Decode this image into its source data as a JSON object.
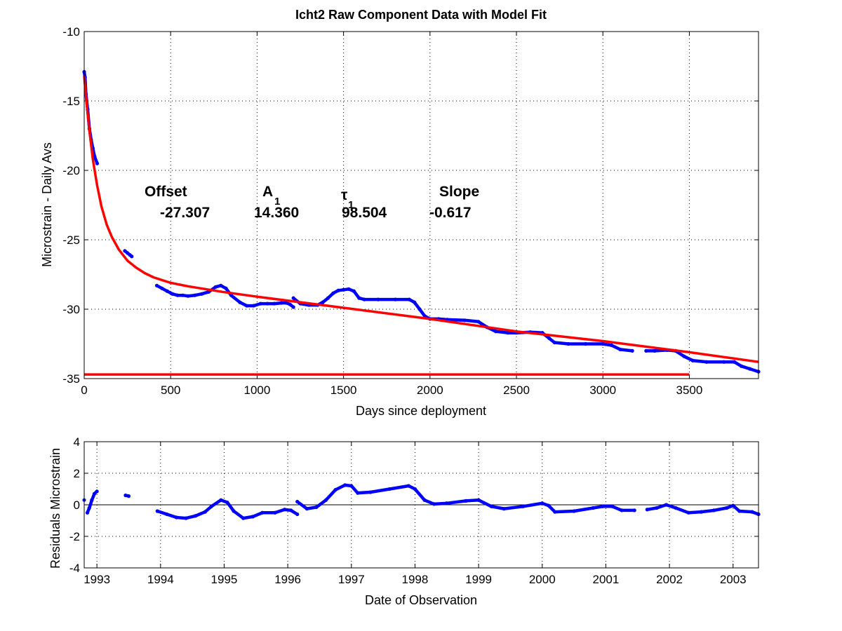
{
  "chart_data": [
    {
      "type": "line",
      "title": "Icht2  Raw Component Data with Model Fit",
      "xlabel": "Days since deployment",
      "ylabel": "Microstrain - Daily Avs",
      "xlim": [
        0,
        3900
      ],
      "ylim": [
        -35,
        -10
      ],
      "xticks": [
        0,
        500,
        1000,
        1500,
        2000,
        2500,
        3000,
        3500
      ],
      "yticks": [
        -10,
        -15,
        -20,
        -25,
        -30,
        -35
      ],
      "grid": true,
      "annotations": {
        "offset_label": "Offset",
        "offset_value": "-27.307",
        "a1_label": "A",
        "a1_sub": "1",
        "a1_value": "14.360",
        "tau1_label": "τ",
        "tau1_sub": "1",
        "tau1_value": "98.504",
        "slope_label": "Slope",
        "slope_value": "-0.617"
      },
      "series": [
        {
          "color": "#0000ff",
          "style": "points",
          "segments": [
            [
              [
                0,
                -12.9
              ],
              [
                5,
                -13.3
              ],
              [
                10,
                -14.5
              ],
              [
                20,
                -15.6
              ],
              [
                30,
                -17.0
              ],
              [
                40,
                -17.8
              ],
              [
                50,
                -18.4
              ],
              [
                60,
                -19.0
              ],
              [
                75,
                -19.5
              ]
            ],
            [
              [
                235,
                -25.8
              ],
              [
                250,
                -25.95
              ],
              [
                265,
                -26.1
              ],
              [
                275,
                -26.2
              ]
            ],
            [
              [
                420,
                -28.3
              ],
              [
                450,
                -28.5
              ],
              [
                480,
                -28.7
              ],
              [
                510,
                -28.9
              ],
              [
                540,
                -29.0
              ],
              [
                570,
                -29.0
              ],
              [
                600,
                -29.05
              ],
              [
                640,
                -29.0
              ],
              [
                680,
                -28.9
              ],
              [
                720,
                -28.75
              ],
              [
                760,
                -28.4
              ],
              [
                790,
                -28.3
              ],
              [
                820,
                -28.5
              ],
              [
                850,
                -29.0
              ],
              [
                900,
                -29.5
              ],
              [
                940,
                -29.75
              ],
              [
                980,
                -29.75
              ],
              [
                1020,
                -29.6
              ],
              [
                1060,
                -29.6
              ],
              [
                1100,
                -29.6
              ],
              [
                1140,
                -29.55
              ],
              [
                1170,
                -29.55
              ],
              [
                1190,
                -29.65
              ],
              [
                1210,
                -29.85
              ]
            ],
            [
              [
                1210,
                -29.2
              ],
              [
                1250,
                -29.6
              ],
              [
                1300,
                -29.7
              ],
              [
                1350,
                -29.7
              ],
              [
                1380,
                -29.5
              ],
              [
                1410,
                -29.2
              ],
              [
                1440,
                -28.85
              ],
              [
                1470,
                -28.65
              ],
              [
                1500,
                -28.6
              ],
              [
                1530,
                -28.55
              ],
              [
                1560,
                -28.7
              ],
              [
                1590,
                -29.2
              ],
              [
                1620,
                -29.3
              ],
              [
                1700,
                -29.3
              ],
              [
                1800,
                -29.3
              ],
              [
                1880,
                -29.3
              ],
              [
                1910,
                -29.5
              ],
              [
                1940,
                -30.0
              ],
              [
                1970,
                -30.5
              ],
              [
                2000,
                -30.7
              ],
              [
                2050,
                -30.7
              ],
              [
                2100,
                -30.75
              ],
              [
                2200,
                -30.8
              ],
              [
                2280,
                -30.9
              ],
              [
                2330,
                -31.3
              ],
              [
                2380,
                -31.6
              ],
              [
                2450,
                -31.7
              ],
              [
                2500,
                -31.7
              ],
              [
                2580,
                -31.65
              ],
              [
                2650,
                -31.7
              ],
              [
                2690,
                -32.1
              ],
              [
                2720,
                -32.4
              ],
              [
                2800,
                -32.5
              ],
              [
                2900,
                -32.5
              ],
              [
                3000,
                -32.5
              ],
              [
                3050,
                -32.6
              ],
              [
                3100,
                -32.9
              ],
              [
                3170,
                -33.0
              ]
            ],
            [
              [
                3250,
                -33.0
              ],
              [
                3300,
                -33.0
              ],
              [
                3370,
                -32.95
              ],
              [
                3420,
                -33.0
              ],
              [
                3470,
                -33.4
              ],
              [
                3520,
                -33.7
              ],
              [
                3600,
                -33.8
              ],
              [
                3700,
                -33.8
              ],
              [
                3760,
                -33.8
              ],
              [
                3800,
                -34.1
              ],
              [
                3850,
                -34.3
              ],
              [
                3900,
                -34.5
              ]
            ]
          ]
        },
        {
          "color": "#ff0000",
          "style": "line",
          "points": [
            [
              0,
              -13.2
            ],
            [
              15,
              -15.3
            ],
            [
              30,
              -17.1
            ],
            [
              50,
              -19.2
            ],
            [
              75,
              -21.1
            ],
            [
              100,
              -22.6
            ],
            [
              130,
              -23.9
            ],
            [
              160,
              -24.8
            ],
            [
              200,
              -25.7
            ],
            [
              250,
              -26.5
            ],
            [
              300,
              -27.0
            ],
            [
              350,
              -27.4
            ],
            [
              400,
              -27.7
            ],
            [
              500,
              -28.1
            ],
            [
              600,
              -28.35
            ],
            [
              700,
              -28.55
            ],
            [
              800,
              -28.75
            ],
            [
              1000,
              -29.1
            ],
            [
              1500,
              -29.9
            ],
            [
              2000,
              -30.7
            ],
            [
              2500,
              -31.6
            ],
            [
              3000,
              -32.3
            ],
            [
              3500,
              -33.1
            ],
            [
              3900,
              -33.8
            ]
          ]
        },
        {
          "color": "#ff0000",
          "style": "line",
          "points": [
            [
              0,
              -34.7
            ],
            [
              3500,
              -34.7
            ]
          ]
        }
      ]
    },
    {
      "type": "line",
      "xlabel": "Date of Observation",
      "ylabel": "Residuals Microstrain",
      "xlim": [
        1992.8,
        2003.4
      ],
      "ylim": [
        -4,
        4
      ],
      "xticks": [
        1993,
        1994,
        1995,
        1996,
        1997,
        1998,
        1999,
        2000,
        2001,
        2002,
        2003
      ],
      "yticks": [
        4,
        2,
        0,
        -2,
        -4
      ],
      "grid": true,
      "zero_line": 0,
      "series": [
        {
          "color": "#0000ff",
          "style": "points",
          "segments": [
            [
              [
                1992.8,
                0.3
              ]
            ],
            [
              [
                1992.85,
                -0.5
              ],
              [
                1992.88,
                -0.2
              ],
              [
                1992.92,
                0.3
              ],
              [
                1992.96,
                0.7
              ],
              [
                1993.0,
                0.85
              ]
            ],
            [
              [
                1993.45,
                0.6
              ],
              [
                1993.5,
                0.55
              ]
            ],
            [
              [
                1993.95,
                -0.4
              ],
              [
                1994.1,
                -0.6
              ],
              [
                1994.25,
                -0.8
              ],
              [
                1994.4,
                -0.85
              ],
              [
                1994.55,
                -0.7
              ],
              [
                1994.7,
                -0.45
              ],
              [
                1994.8,
                -0.1
              ],
              [
                1994.95,
                0.3
              ],
              [
                1995.05,
                0.15
              ],
              [
                1995.15,
                -0.4
              ],
              [
                1995.3,
                -0.85
              ],
              [
                1995.45,
                -0.75
              ],
              [
                1995.6,
                -0.5
              ],
              [
                1995.8,
                -0.5
              ],
              [
                1995.95,
                -0.3
              ],
              [
                1996.05,
                -0.35
              ],
              [
                1996.15,
                -0.6
              ]
            ],
            [
              [
                1996.15,
                0.2
              ],
              [
                1996.3,
                -0.25
              ],
              [
                1996.45,
                -0.15
              ],
              [
                1996.6,
                0.3
              ],
              [
                1996.75,
                0.95
              ],
              [
                1996.9,
                1.25
              ],
              [
                1997.0,
                1.2
              ],
              [
                1997.1,
                0.75
              ],
              [
                1997.3,
                0.8
              ],
              [
                1997.6,
                1.0
              ],
              [
                1997.9,
                1.2
              ],
              [
                1998.0,
                1.0
              ],
              [
                1998.15,
                0.3
              ],
              [
                1998.3,
                0.05
              ],
              [
                1998.5,
                0.1
              ],
              [
                1998.8,
                0.25
              ],
              [
                1999.0,
                0.3
              ],
              [
                1999.2,
                -0.1
              ],
              [
                1999.4,
                -0.25
              ],
              [
                1999.7,
                -0.1
              ],
              [
                2000.0,
                0.1
              ],
              [
                2000.1,
                -0.05
              ],
              [
                2000.2,
                -0.45
              ],
              [
                2000.5,
                -0.4
              ],
              [
                2000.8,
                -0.2
              ],
              [
                2000.95,
                -0.1
              ],
              [
                2001.1,
                -0.1
              ],
              [
                2001.25,
                -0.35
              ],
              [
                2001.45,
                -0.35
              ]
            ],
            [
              [
                2001.65,
                -0.3
              ],
              [
                2001.8,
                -0.2
              ],
              [
                2001.95,
                0.0
              ],
              [
                2002.1,
                -0.2
              ],
              [
                2002.3,
                -0.5
              ],
              [
                2002.5,
                -0.45
              ],
              [
                2002.7,
                -0.35
              ],
              [
                2002.9,
                -0.2
              ],
              [
                2003.0,
                -0.05
              ],
              [
                2003.1,
                -0.4
              ],
              [
                2003.3,
                -0.45
              ],
              [
                2003.4,
                -0.6
              ]
            ]
          ]
        }
      ]
    }
  ]
}
